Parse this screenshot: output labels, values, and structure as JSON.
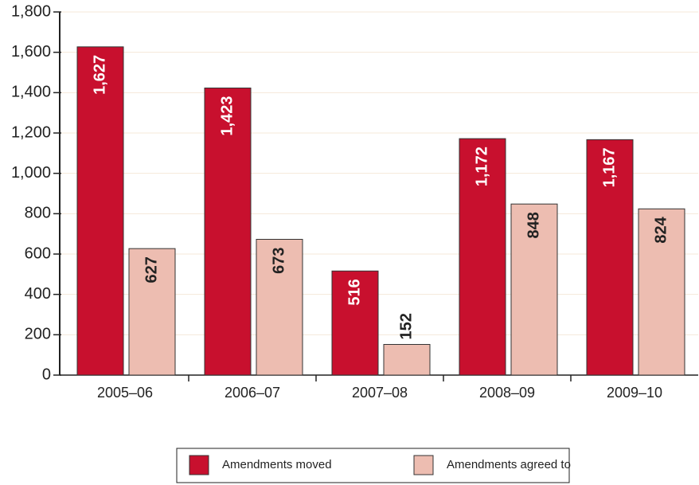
{
  "chart_data": {
    "type": "bar",
    "categories": [
      "2005–06",
      "2006–07",
      "2007–08",
      "2008–09",
      "2009–10"
    ],
    "series": [
      {
        "name": "Amendments moved",
        "color": "#c8102e",
        "values": [
          1627,
          1423,
          516,
          1172,
          1167
        ],
        "value_labels": [
          "1,627",
          "1,423",
          "516",
          "1,172",
          "1,167"
        ]
      },
      {
        "name": "Amendments agreed to",
        "color": "#edbdb1",
        "values": [
          627,
          673,
          152,
          848,
          824
        ]
      }
    ],
    "ylim": [
      0,
      1800
    ],
    "yticks": [
      0,
      200,
      400,
      600,
      800,
      {
        "value": 1000,
        "label": "1,000"
      },
      {
        "value": 1200,
        "label": "1,200"
      },
      {
        "value": 1400,
        "label": "1,400"
      },
      {
        "value": 1600,
        "label": "1,600"
      },
      {
        "value": 1800,
        "label": "1,800"
      }
    ],
    "grid": true
  }
}
